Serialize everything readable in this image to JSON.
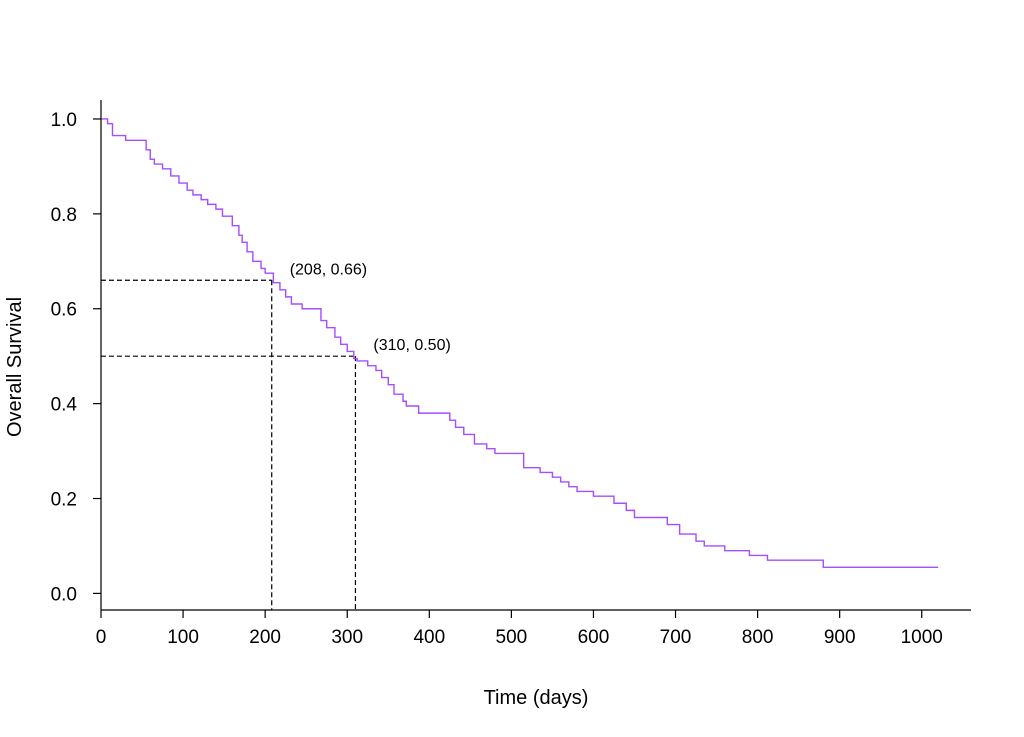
{
  "chart_data": {
    "type": "line",
    "title": "",
    "xlabel": "Time (days)",
    "ylabel": "Overall Survival",
    "xlim": [
      0,
      1060
    ],
    "ylim": [
      -0.035,
      1.04
    ],
    "x_ticks": [
      0,
      100,
      200,
      300,
      400,
      500,
      600,
      700,
      800,
      900,
      1000
    ],
    "y_ticks": [
      "0.0",
      "0.2",
      "0.4",
      "0.6",
      "0.8",
      "1.0"
    ],
    "grid": false,
    "step": true,
    "color": "#a64dff",
    "series": [
      {
        "x": [
          0,
          8,
          14,
          30,
          55,
          60,
          65,
          75,
          85,
          95,
          105,
          112,
          122,
          130,
          140,
          148,
          160,
          168,
          172,
          178,
          185,
          195,
          200,
          210,
          218,
          225,
          232,
          245,
          268,
          275,
          285,
          292,
          300,
          308,
          312,
          325,
          335,
          342,
          350,
          357,
          368,
          372,
          387,
          425,
          432,
          442,
          455,
          470,
          480,
          515,
          535,
          550,
          560,
          570,
          580,
          600,
          625,
          640,
          650,
          690,
          705,
          725,
          735,
          760,
          790,
          812,
          880,
          1020
        ],
        "y": [
          1.0,
          0.99,
          0.965,
          0.955,
          0.935,
          0.915,
          0.905,
          0.895,
          0.88,
          0.865,
          0.85,
          0.84,
          0.83,
          0.82,
          0.81,
          0.795,
          0.775,
          0.755,
          0.74,
          0.72,
          0.7,
          0.685,
          0.675,
          0.655,
          0.64,
          0.625,
          0.61,
          0.6,
          0.575,
          0.56,
          0.54,
          0.525,
          0.51,
          0.495,
          0.49,
          0.48,
          0.47,
          0.455,
          0.44,
          0.42,
          0.405,
          0.395,
          0.38,
          0.365,
          0.35,
          0.335,
          0.315,
          0.305,
          0.295,
          0.265,
          0.255,
          0.245,
          0.235,
          0.225,
          0.215,
          0.205,
          0.19,
          0.175,
          0.16,
          0.145,
          0.125,
          0.11,
          0.1,
          0.09,
          0.08,
          0.07,
          0.055,
          0.055
        ]
      }
    ],
    "annotations": [
      {
        "x": 208,
        "y": 0.66,
        "label": "(208, 0.66)"
      },
      {
        "x": 310,
        "y": 0.5,
        "label": "(310, 0.50)"
      }
    ]
  }
}
